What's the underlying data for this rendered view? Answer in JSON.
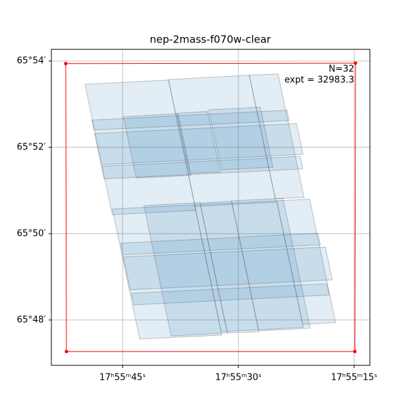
{
  "chart_data": {
    "type": "footprint",
    "title": "nep-2mass-f070w-clear",
    "annotations": [
      "N=32",
      "expt = 32983.3"
    ],
    "xlim": [
      54.23,
      12.96
    ],
    "xticks": [
      {
        "value": 45,
        "label": "17ʰ55ᵐ45ˢ"
      },
      {
        "value": 30,
        "label": "17ʰ55ᵐ30ˢ"
      },
      {
        "value": 15,
        "label": "17ʰ55ᵐ15ˢ"
      }
    ],
    "ylim": [
      46.95,
      54.27
    ],
    "yticks": [
      {
        "value": 48,
        "label": "65°48′"
      },
      {
        "value": 50,
        "label": "65°50′"
      },
      {
        "value": 52,
        "label": "65°52′"
      },
      {
        "value": 54,
        "label": "65°54′"
      }
    ],
    "grid": true,
    "footprint_color": "#1f77b4",
    "footprints": [
      [
        [
          49.88,
          53.46
        ],
        [
          39.05,
          53.56
        ],
        [
          35.51,
          50.54
        ],
        [
          46.34,
          50.44
        ]
      ],
      [
        [
          39.05,
          53.57
        ],
        [
          28.58,
          53.67
        ],
        [
          25.13,
          50.73
        ],
        [
          35.6,
          50.63
        ]
      ],
      [
        [
          28.58,
          53.67
        ],
        [
          24.85,
          53.7
        ],
        [
          21.5,
          50.84
        ],
        [
          25.22,
          50.81
        ]
      ],
      [
        [
          46.33,
          50.57
        ],
        [
          35.68,
          50.67
        ],
        [
          32.14,
          47.65
        ],
        [
          42.79,
          47.56
        ]
      ],
      [
        [
          35.68,
          50.67
        ],
        [
          25.03,
          50.76
        ],
        [
          21.58,
          47.83
        ],
        [
          32.23,
          47.73
        ]
      ],
      [
        [
          25.03,
          50.76
        ],
        [
          20.77,
          50.8
        ],
        [
          17.41,
          47.94
        ],
        [
          21.67,
          47.9
        ]
      ],
      [
        [
          48.99,
          52.63
        ],
        [
          23.7,
          52.86
        ],
        [
          23.41,
          52.62
        ],
        [
          48.71,
          52.4
        ]
      ],
      [
        [
          48.64,
          52.32
        ],
        [
          22.46,
          52.55
        ],
        [
          21.61,
          51.84
        ],
        [
          47.8,
          51.6
        ]
      ],
      [
        [
          47.75,
          51.56
        ],
        [
          22.01,
          51.79
        ],
        [
          21.67,
          51.5
        ],
        [
          47.41,
          51.27
        ]
      ],
      [
        [
          45.27,
          49.78
        ],
        [
          19.7,
          50.01
        ],
        [
          19.38,
          49.74
        ],
        [
          44.95,
          49.51
        ]
      ],
      [
        [
          44.91,
          49.46
        ],
        [
          18.73,
          49.69
        ],
        [
          17.83,
          48.93
        ],
        [
          44.01,
          48.7
        ]
      ],
      [
        [
          43.85,
          48.62
        ],
        [
          18.55,
          48.84
        ],
        [
          18.23,
          48.58
        ],
        [
          43.53,
          48.35
        ]
      ],
      [
        [
          44.91,
          52.71
        ],
        [
          37.81,
          52.78
        ],
        [
          36.13,
          51.35
        ],
        [
          43.23,
          51.29
        ]
      ],
      [
        [
          37.99,
          52.79
        ],
        [
          33.99,
          52.83
        ],
        [
          32.35,
          51.43
        ],
        [
          36.35,
          51.4
        ]
      ],
      [
        [
          33.82,
          52.87
        ],
        [
          27.16,
          52.93
        ],
        [
          25.52,
          51.54
        ],
        [
          32.17,
          51.48
        ]
      ],
      [
        [
          42.25,
          50.65
        ],
        [
          34.97,
          50.72
        ],
        [
          31.43,
          47.7
        ],
        [
          38.71,
          47.63
        ]
      ],
      [
        [
          34.97,
          50.71
        ],
        [
          30.89,
          50.75
        ],
        [
          27.35,
          47.73
        ],
        [
          31.43,
          47.7
        ]
      ],
      [
        [
          30.89,
          50.76
        ],
        [
          24.23,
          50.82
        ],
        [
          20.69,
          47.81
        ],
        [
          27.35,
          47.75
        ]
      ]
    ],
    "boundary_color": "#ff0000",
    "boundary": [
      [
        52.37,
        53.94
      ],
      [
        14.82,
        53.95
      ],
      [
        14.91,
        47.27
      ],
      [
        52.28,
        47.27
      ]
    ]
  }
}
